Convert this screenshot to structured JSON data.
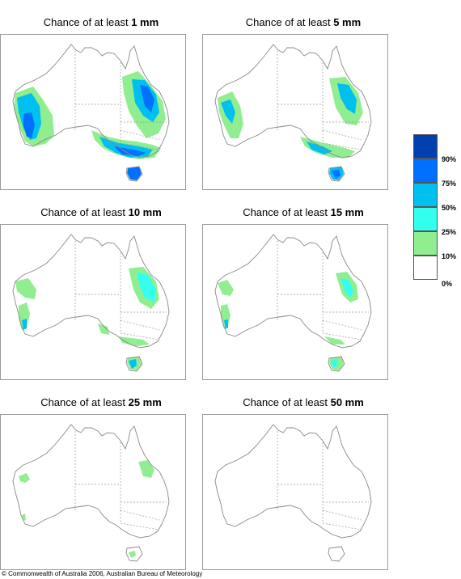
{
  "title_prefix": "Chance of at least",
  "panels": [
    {
      "threshold": "1 mm"
    },
    {
      "threshold": "5 mm"
    },
    {
      "threshold": "10 mm"
    },
    {
      "threshold": "15 mm"
    },
    {
      "threshold": "25 mm"
    },
    {
      "threshold": "50 mm"
    }
  ],
  "legend": {
    "colors": [
      "#ffffff",
      "#90ee90",
      "#33ffee",
      "#00c0ef",
      "#0070ff",
      "#0040b0"
    ],
    "labels": [
      "0%",
      "10%",
      "25%",
      "50%",
      "75%",
      "90%"
    ]
  },
  "footer": "© Commonwealth of Australia 2006, Australian Bureau of Meteorology"
}
